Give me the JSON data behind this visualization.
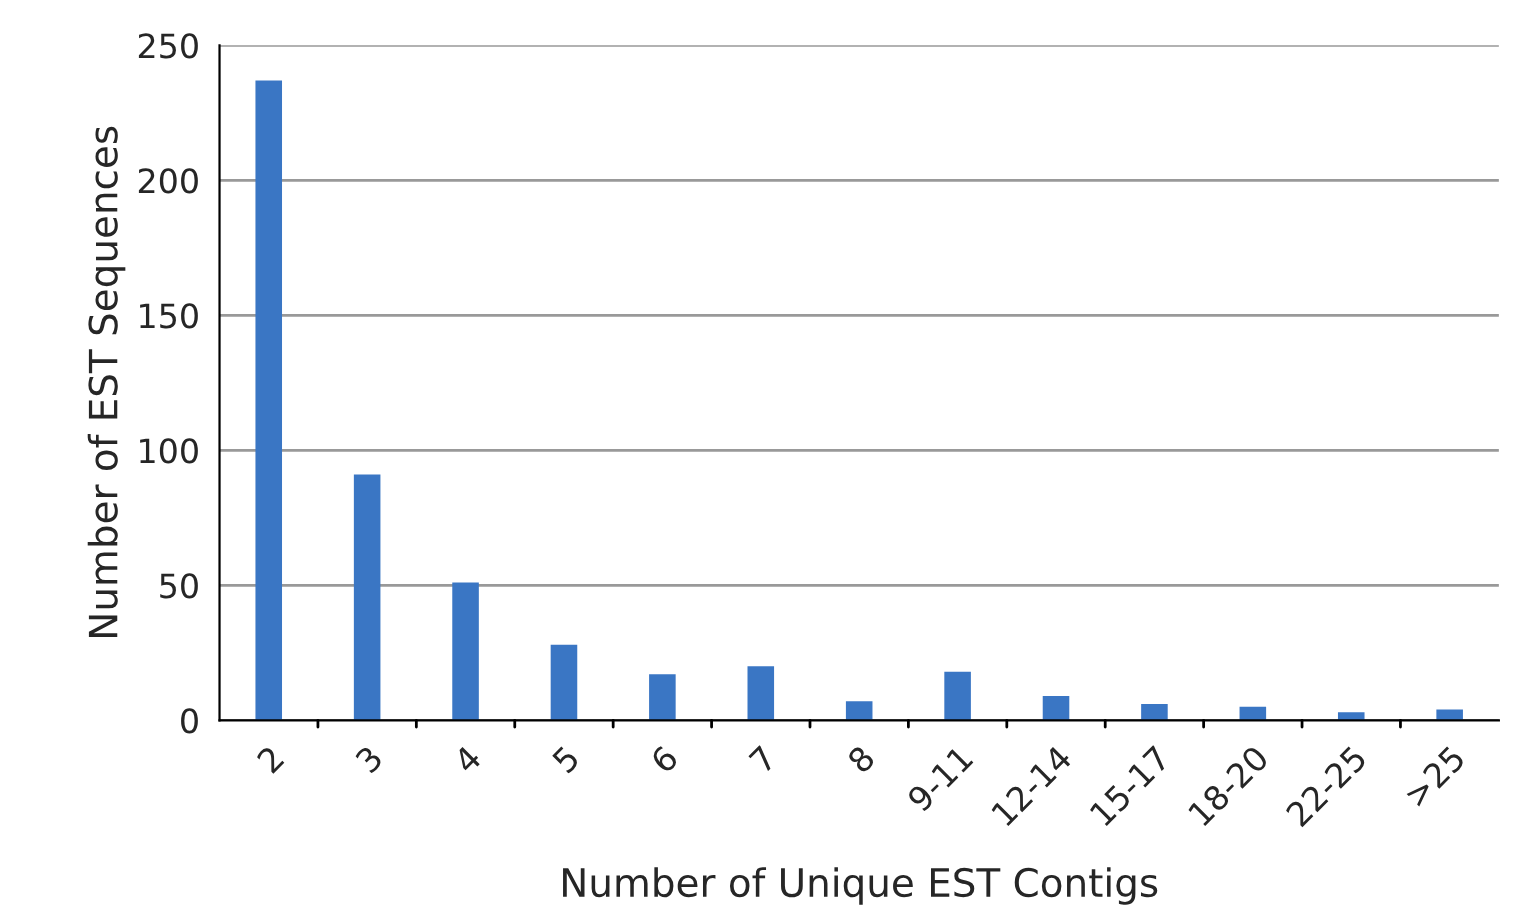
{
  "chart_data": {
    "type": "bar",
    "xlabel": "Number of Unique EST Contigs",
    "ylabel": "Number of EST Sequences",
    "categories": [
      "2",
      "3",
      "4",
      "5",
      "6",
      "7",
      "8",
      "9-11",
      "12-14",
      "15-17",
      "18-20",
      "22-25",
      ">25"
    ],
    "values": [
      237,
      91,
      51,
      28,
      17,
      20,
      7,
      18,
      9,
      6,
      5,
      3,
      4
    ],
    "color": "#3a76c4",
    "ylim": [
      0,
      250
    ],
    "yticks": [
      0,
      50,
      100,
      150,
      200,
      250
    ],
    "grid": "y"
  }
}
